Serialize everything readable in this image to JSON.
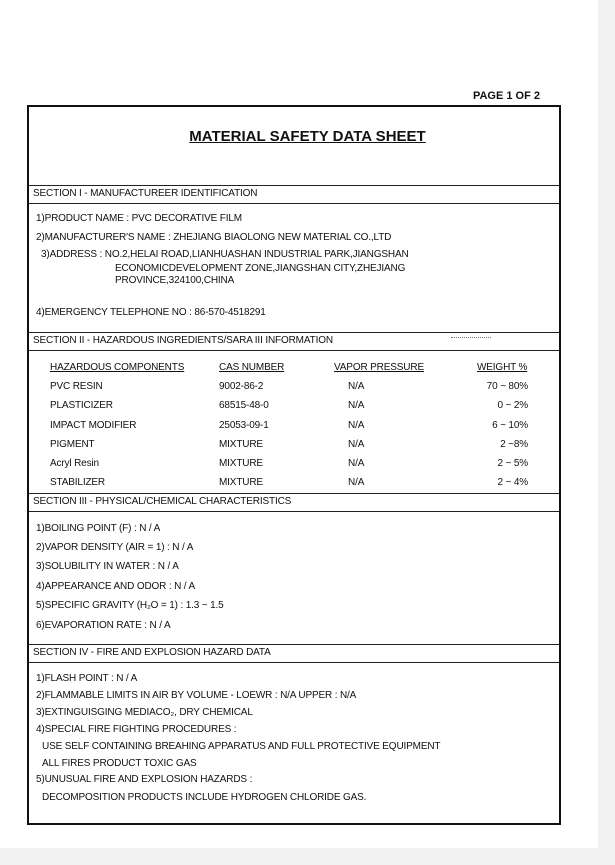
{
  "page_label": "PAGE 1 OF 2",
  "title": "MATERIAL SAFETY DATA SHEET",
  "section1": {
    "header": "SECTION I - MANUFACTUREER IDENTIFICATION",
    "lines": [
      "1)PRODUCT NAME : PVC DECORATIVE FILM",
      "2)MANUFACTURER'S NAME : ZHEJIANG BIAOLONG NEW MATERIAL CO.,LTD",
      "3)ADDRESS : NO.2,HELAI ROAD,LIANHUASHAN INDUSTRIAL PARK,JIANGSHAN",
      "ECONOMICDEVELOPMENT ZONE,JIANGSHAN CITY,ZHEJIANG",
      "PROVINCE,324100,CHINA",
      "4)EMERGENCY TELEPHONE NO : 86-570-4518291"
    ]
  },
  "section2": {
    "header": "SECTION II - HAZARDOUS INGREDIENTS/SARA III INFORMATION",
    "columns": [
      "HAZARDOUS COMPONENTS",
      "CAS NUMBER",
      "VAPOR PRESSURE",
      "WEIGHT %"
    ],
    "rows": [
      [
        "PVC RESIN",
        "9002-86-2",
        "N/A",
        "70 ~ 80%"
      ],
      [
        "PLASTICIZER",
        "68515-48-0",
        "N/A",
        "0 ~ 2%"
      ],
      [
        "IMPACT MODIFIER",
        "25053-09-1",
        "N/A",
        "6 ~ 10%"
      ],
      [
        "PIGMENT",
        "MIXTURE",
        "N/A",
        "2 ~8%"
      ],
      [
        "Acryl Resin",
        "MIXTURE",
        "N/A",
        "2 ~ 5%"
      ],
      [
        "STABILIZER",
        "MIXTURE",
        "N/A",
        "2 ~ 4%"
      ]
    ]
  },
  "section3": {
    "header": "SECTION III - PHYSICAL/CHEMICAL CHARACTERISTICS",
    "lines": [
      "1)BOILING POINT (F) : N / A",
      "2)VAPOR DENSITY (AIR = 1) : N / A",
      "3)SOLUBILITY IN WATER : N / A",
      "4)APPEARANCE AND ODOR : N / A",
      "5)SPECIFIC GRAVITY (H₂O = 1) : 1.3 ~ 1.5",
      "6)EVAPORATION RATE : N / A"
    ]
  },
  "section4": {
    "header": "SECTION IV - FIRE AND EXPLOSION HAZARD DATA",
    "lines": [
      "1)FLASH POINT : N / A",
      "2)FLAMMABLE LIMITS IN AIR BY VOLUME - LOEWR : N/A UPPER : N/A",
      "3)EXTINGUISGING MEDIACO₂, DRY CHEMICAL",
      "4)SPECIAL FIRE FIGHTING PROCEDURES :",
      "USE SELF CONTAINING BREAHING APPARATUS AND FULL PROTECTIVE EQUIPMENT",
      "ALL FIRES PRODUCT TOXIC GAS",
      "5)UNUSUAL FIRE AND EXPLOSION HAZARDS :",
      "DECOMPOSITION PRODUCTS INCLUDE HYDROGEN CHLORIDE GAS."
    ]
  }
}
